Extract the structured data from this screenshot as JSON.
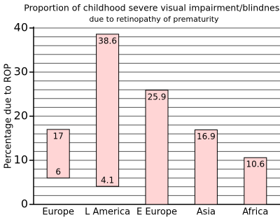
{
  "chart_data": {
    "type": "range-bar",
    "title": "Proportion of childhood severe visual impairment/blindness",
    "subtitle": "due to retinopathy of prematurity",
    "y_label": "Percentage due to ROP",
    "categories": [
      "Europe",
      "L America",
      "E Europe",
      "Asia",
      "Africa"
    ],
    "values": [
      17,
      38.6,
      25.9,
      16.9,
      10.6
    ],
    "lows": [
      6,
      4.1,
      null,
      null,
      null
    ],
    "color": "#ffd5d5",
    "ylim": [
      0,
      40
    ],
    "yticks": [
      0,
      10,
      20,
      30,
      40
    ],
    "grid_lines": [
      2,
      4,
      6,
      8,
      10,
      12,
      14,
      16,
      18,
      20,
      22,
      24,
      26,
      28,
      30,
      32,
      34,
      36,
      38,
      40
    ]
  }
}
